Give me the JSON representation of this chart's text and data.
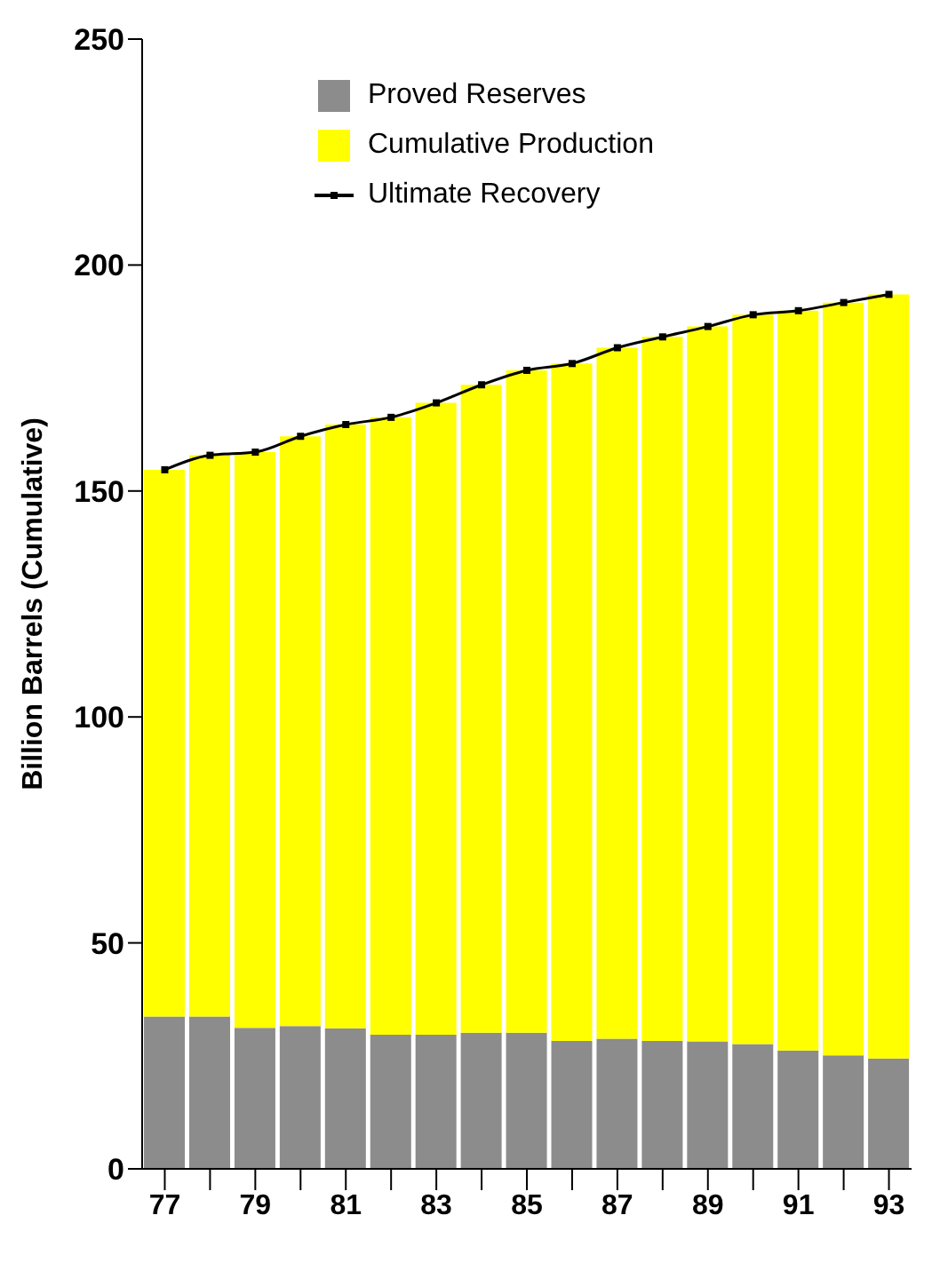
{
  "chart_data": {
    "type": "bar",
    "stacked": true,
    "ylabel": "Billion Barrels (Cumulative)",
    "categories": [
      "77",
      null,
      "79",
      null,
      "81",
      null,
      "83",
      null,
      "85",
      null,
      "87",
      null,
      "89",
      null,
      "91",
      null,
      "93"
    ],
    "ylim": [
      0,
      250
    ],
    "yticks": [
      0,
      50,
      100,
      150,
      200,
      250
    ],
    "grid": false,
    "legend": "top left",
    "marker": "square",
    "series": [
      {
        "name": "Proved Reserves",
        "color": "#8c8c8c",
        "values": [
          33.7,
          33.7,
          31.2,
          31.6,
          31.1,
          29.7,
          29.7,
          30.1,
          30.1,
          28.3,
          28.8,
          28.3,
          28.2,
          27.6,
          26.2,
          25.1,
          24.4
        ]
      },
      {
        "name": "Cumulative Production",
        "color": "#ffff00",
        "values": [
          121.0,
          124.2,
          127.4,
          130.5,
          133.6,
          136.6,
          139.8,
          143.4,
          146.6,
          149.9,
          152.9,
          155.8,
          158.2,
          161.4,
          163.7,
          166.6,
          169.1
        ]
      },
      {
        "name": "Ultimate Recovery",
        "type": "line",
        "color": "#000000",
        "values": [
          154.7,
          157.9,
          158.6,
          162.1,
          164.7,
          166.3,
          169.5,
          173.5,
          176.7,
          178.2,
          181.7,
          184.1,
          186.4,
          189.0,
          189.9,
          191.7,
          193.5
        ]
      }
    ]
  }
}
